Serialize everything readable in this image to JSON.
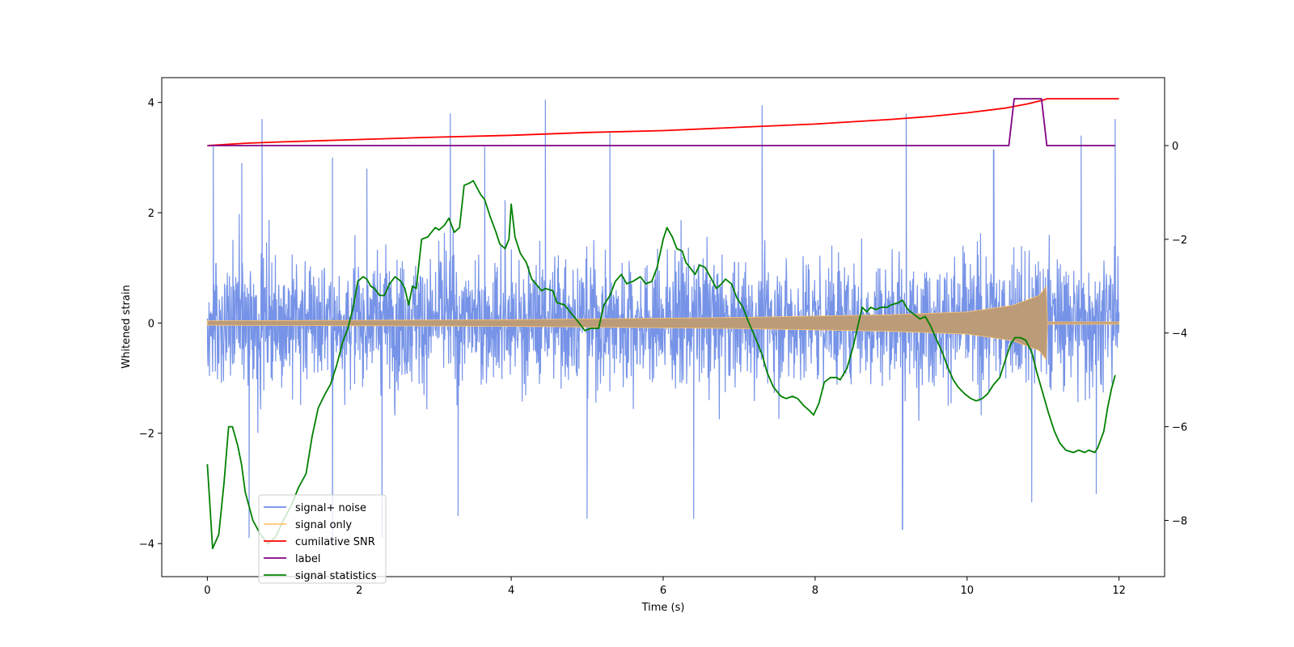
{
  "chart_data": {
    "type": "line",
    "title": "",
    "xlabel": "Time (s)",
    "ylabel": "Whitened strain",
    "y2label": "",
    "xlim": [
      -0.6,
      12.6
    ],
    "ylim": [
      -4.6,
      4.45
    ],
    "y2lim": [
      -9.2,
      1.45
    ],
    "xticks": [
      0,
      2,
      4,
      6,
      8,
      10,
      12
    ],
    "xtick_labels": [
      "0",
      "2",
      "4",
      "6",
      "8",
      "10",
      "12"
    ],
    "yticks": [
      -4,
      -2,
      0,
      2,
      4
    ],
    "ytick_labels": [
      "−4",
      "−2",
      "0",
      "2",
      "4"
    ],
    "y2ticks": [
      -8,
      -6,
      -4,
      -2,
      0
    ],
    "y2tick_labels": [
      "−8",
      "−6",
      "−4",
      "−2",
      "0"
    ],
    "legend": {
      "placement": "lower-left",
      "entries": [
        "signal+ noise",
        "signal only",
        "cumilative SNR",
        "label",
        "signal statistics"
      ]
    },
    "series": [
      {
        "name": "signal+ noise",
        "axis": "left",
        "color": "#6f8de6",
        "kind": "noise",
        "t_range": [
          0,
          12
        ],
        "typical_range": [
          -2.4,
          2.6
        ],
        "peaks": [
          {
            "t": 0.08,
            "v": 3.2
          },
          {
            "t": 0.45,
            "v": 2.9
          },
          {
            "t": 0.72,
            "v": 3.7
          },
          {
            "t": 1.65,
            "v": 3.0
          },
          {
            "t": 2.1,
            "v": 2.8
          },
          {
            "t": 3.2,
            "v": 3.8
          },
          {
            "t": 3.65,
            "v": 3.2
          },
          {
            "t": 4.45,
            "v": 4.05
          },
          {
            "t": 5.3,
            "v": 3.45
          },
          {
            "t": 7.3,
            "v": 3.95
          },
          {
            "t": 9.2,
            "v": 3.8
          },
          {
            "t": 10.35,
            "v": 3.15
          },
          {
            "t": 11.5,
            "v": 3.4
          },
          {
            "t": 11.95,
            "v": 3.7
          },
          {
            "t": 0.55,
            "v": -3.9
          },
          {
            "t": 1.65,
            "v": -4.05
          },
          {
            "t": 2.3,
            "v": -3.9
          },
          {
            "t": 3.3,
            "v": -3.5
          },
          {
            "t": 5.0,
            "v": -3.55
          },
          {
            "t": 6.4,
            "v": -3.55
          },
          {
            "t": 9.15,
            "v": -3.75
          },
          {
            "t": 10.85,
            "v": -3.25
          },
          {
            "t": 11.7,
            "v": -3.1
          }
        ]
      },
      {
        "name": "signal only",
        "axis": "left",
        "color": "#ffc56f",
        "fill_color": "#bc9b78",
        "kind": "chirp",
        "t_range": [
          0,
          12
        ],
        "merger_t": 11.05,
        "envelope": [
          [
            0,
            0.04
          ],
          [
            4,
            0.06
          ],
          [
            7,
            0.1
          ],
          [
            9,
            0.15
          ],
          [
            10,
            0.2
          ],
          [
            10.6,
            0.32
          ],
          [
            10.95,
            0.5
          ],
          [
            11.05,
            0.68
          ]
        ],
        "post_merger": 0.02
      },
      {
        "name": "cumilative SNR",
        "axis": "right",
        "color": "#ff0000",
        "points": [
          [
            0,
            0
          ],
          [
            0.5,
            0.05
          ],
          [
            1,
            0.08
          ],
          [
            2,
            0.13
          ],
          [
            3,
            0.18
          ],
          [
            4,
            0.22
          ],
          [
            5,
            0.28
          ],
          [
            6,
            0.32
          ],
          [
            7,
            0.39
          ],
          [
            8,
            0.46
          ],
          [
            9,
            0.56
          ],
          [
            9.5,
            0.62
          ],
          [
            10,
            0.7
          ],
          [
            10.5,
            0.8
          ],
          [
            10.8,
            0.89
          ],
          [
            11.0,
            0.97
          ],
          [
            11.05,
            1.0
          ],
          [
            12,
            1.0
          ]
        ]
      },
      {
        "name": "label",
        "axis": "right",
        "color": "#800080",
        "points": [
          [
            0,
            0
          ],
          [
            10.55,
            0
          ],
          [
            10.62,
            1.0
          ],
          [
            10.98,
            1.0
          ],
          [
            11.05,
            0
          ],
          [
            11.95,
            0
          ]
        ]
      },
      {
        "name": "signal statistics",
        "axis": "right",
        "color": "#008000",
        "points": [
          [
            0,
            -6.8
          ],
          [
            0.07,
            -8.6
          ],
          [
            0.15,
            -8.3
          ],
          [
            0.22,
            -7.2
          ],
          [
            0.28,
            -6.0
          ],
          [
            0.33,
            -6.0
          ],
          [
            0.4,
            -6.4
          ],
          [
            0.45,
            -6.8
          ],
          [
            0.5,
            -7.4
          ],
          [
            0.6,
            -8.0
          ],
          [
            0.7,
            -8.3
          ],
          [
            0.8,
            -8.5
          ],
          [
            0.9,
            -8.35
          ],
          [
            1.0,
            -8.0
          ],
          [
            1.1,
            -7.7
          ],
          [
            1.2,
            -7.3
          ],
          [
            1.3,
            -7.0
          ],
          [
            1.38,
            -6.2
          ],
          [
            1.46,
            -5.6
          ],
          [
            1.55,
            -5.3
          ],
          [
            1.62,
            -5.1
          ],
          [
            1.7,
            -4.7
          ],
          [
            1.78,
            -4.2
          ],
          [
            1.85,
            -3.9
          ],
          [
            1.92,
            -3.45
          ],
          [
            1.98,
            -2.9
          ],
          [
            2.05,
            -2.8
          ],
          [
            2.1,
            -2.85
          ],
          [
            2.15,
            -3.0
          ],
          [
            2.2,
            -3.05
          ],
          [
            2.27,
            -3.2
          ],
          [
            2.33,
            -3.2
          ],
          [
            2.4,
            -2.95
          ],
          [
            2.47,
            -2.8
          ],
          [
            2.55,
            -2.9
          ],
          [
            2.6,
            -3.05
          ],
          [
            2.65,
            -3.4
          ],
          [
            2.7,
            -3.0
          ],
          [
            2.75,
            -3.05
          ],
          [
            2.82,
            -2.0
          ],
          [
            2.9,
            -1.95
          ],
          [
            2.95,
            -1.85
          ],
          [
            3.0,
            -1.75
          ],
          [
            3.05,
            -1.8
          ],
          [
            3.12,
            -1.7
          ],
          [
            3.18,
            -1.55
          ],
          [
            3.25,
            -1.85
          ],
          [
            3.32,
            -1.75
          ],
          [
            3.38,
            -0.85
          ],
          [
            3.45,
            -0.8
          ],
          [
            3.5,
            -0.75
          ],
          [
            3.6,
            -1.05
          ],
          [
            3.65,
            -1.15
          ],
          [
            3.72,
            -1.5
          ],
          [
            3.8,
            -1.85
          ],
          [
            3.85,
            -2.1
          ],
          [
            3.92,
            -2.2
          ],
          [
            3.97,
            -2.0
          ],
          [
            4.0,
            -1.25
          ],
          [
            4.05,
            -1.95
          ],
          [
            4.12,
            -2.3
          ],
          [
            4.2,
            -2.5
          ],
          [
            4.27,
            -2.85
          ],
          [
            4.35,
            -3.0
          ],
          [
            4.4,
            -3.1
          ],
          [
            4.45,
            -3.05
          ],
          [
            4.55,
            -3.1
          ],
          [
            4.6,
            -3.35
          ],
          [
            4.7,
            -3.4
          ],
          [
            4.8,
            -3.6
          ],
          [
            4.9,
            -3.8
          ],
          [
            4.97,
            -3.95
          ],
          [
            5.05,
            -3.9
          ],
          [
            5.15,
            -3.9
          ],
          [
            5.22,
            -3.4
          ],
          [
            5.3,
            -3.2
          ],
          [
            5.37,
            -2.9
          ],
          [
            5.45,
            -2.75
          ],
          [
            5.52,
            -2.95
          ],
          [
            5.6,
            -2.9
          ],
          [
            5.7,
            -2.8
          ],
          [
            5.77,
            -2.95
          ],
          [
            5.85,
            -2.9
          ],
          [
            5.92,
            -2.6
          ],
          [
            6.0,
            -2.0
          ],
          [
            6.05,
            -1.75
          ],
          [
            6.12,
            -1.95
          ],
          [
            6.18,
            -2.2
          ],
          [
            6.25,
            -2.25
          ],
          [
            6.3,
            -2.5
          ],
          [
            6.35,
            -2.6
          ],
          [
            6.42,
            -2.75
          ],
          [
            6.48,
            -2.55
          ],
          [
            6.55,
            -2.6
          ],
          [
            6.62,
            -2.8
          ],
          [
            6.7,
            -3.05
          ],
          [
            6.77,
            -2.95
          ],
          [
            6.82,
            -2.85
          ],
          [
            6.9,
            -2.95
          ],
          [
            6.97,
            -3.25
          ],
          [
            7.05,
            -3.45
          ],
          [
            7.12,
            -3.75
          ],
          [
            7.2,
            -4.05
          ],
          [
            7.3,
            -4.45
          ],
          [
            7.37,
            -4.85
          ],
          [
            7.45,
            -5.15
          ],
          [
            7.55,
            -5.35
          ],
          [
            7.62,
            -5.4
          ],
          [
            7.7,
            -5.35
          ],
          [
            7.77,
            -5.4
          ],
          [
            7.85,
            -5.55
          ],
          [
            7.92,
            -5.65
          ],
          [
            7.98,
            -5.75
          ],
          [
            8.05,
            -5.5
          ],
          [
            8.12,
            -5.05
          ],
          [
            8.2,
            -4.95
          ],
          [
            8.28,
            -4.95
          ],
          [
            8.33,
            -5.0
          ],
          [
            8.42,
            -4.75
          ],
          [
            8.5,
            -4.3
          ],
          [
            8.57,
            -3.8
          ],
          [
            8.62,
            -3.45
          ],
          [
            8.68,
            -3.55
          ],
          [
            8.73,
            -3.45
          ],
          [
            8.8,
            -3.5
          ],
          [
            8.87,
            -3.45
          ],
          [
            8.95,
            -3.45
          ],
          [
            9.0,
            -3.4
          ],
          [
            9.1,
            -3.35
          ],
          [
            9.15,
            -3.3
          ],
          [
            9.22,
            -3.5
          ],
          [
            9.3,
            -3.6
          ],
          [
            9.38,
            -3.7
          ],
          [
            9.45,
            -3.65
          ],
          [
            9.52,
            -3.85
          ],
          [
            9.6,
            -4.15
          ],
          [
            9.67,
            -4.4
          ],
          [
            9.75,
            -4.75
          ],
          [
            9.82,
            -5.0
          ],
          [
            9.88,
            -5.15
          ],
          [
            9.97,
            -5.3
          ],
          [
            10.05,
            -5.4
          ],
          [
            10.12,
            -5.45
          ],
          [
            10.2,
            -5.4
          ],
          [
            10.27,
            -5.3
          ],
          [
            10.35,
            -5.1
          ],
          [
            10.43,
            -4.95
          ],
          [
            10.5,
            -4.6
          ],
          [
            10.57,
            -4.25
          ],
          [
            10.63,
            -4.1
          ],
          [
            10.7,
            -4.1
          ],
          [
            10.77,
            -4.15
          ],
          [
            10.85,
            -4.4
          ],
          [
            10.92,
            -4.85
          ],
          [
            11.0,
            -5.3
          ],
          [
            11.07,
            -5.7
          ],
          [
            11.15,
            -6.1
          ],
          [
            11.22,
            -6.35
          ],
          [
            11.3,
            -6.5
          ],
          [
            11.4,
            -6.55
          ],
          [
            11.47,
            -6.5
          ],
          [
            11.55,
            -6.55
          ],
          [
            11.6,
            -6.5
          ],
          [
            11.68,
            -6.55
          ],
          [
            11.72,
            -6.45
          ],
          [
            11.8,
            -6.1
          ],
          [
            11.85,
            -5.6
          ],
          [
            11.9,
            -5.2
          ],
          [
            11.95,
            -4.9
          ]
        ]
      }
    ]
  }
}
